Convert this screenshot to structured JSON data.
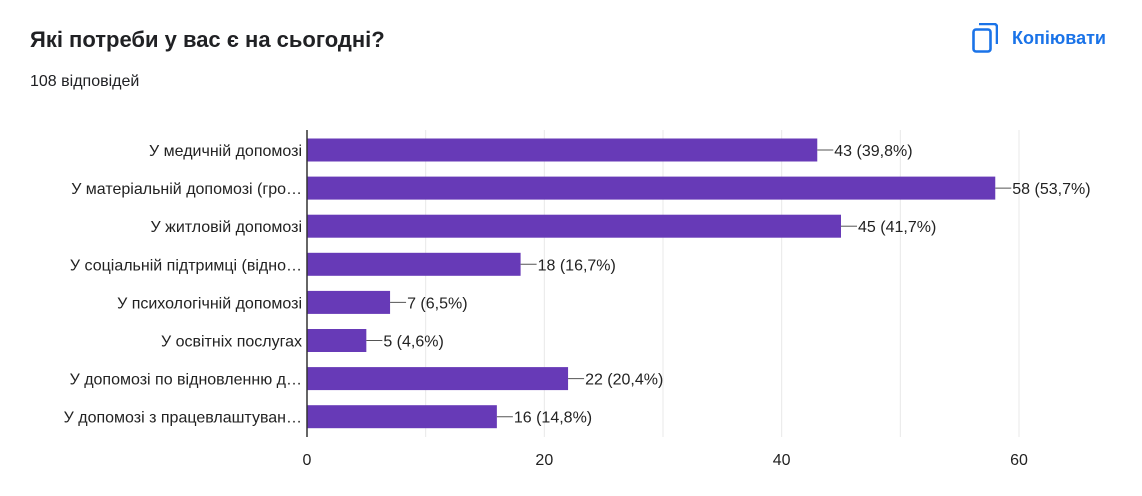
{
  "header": {
    "title": "Які потреби у вас є на сьогодні?",
    "responses": "108 відповідей",
    "copy_label": "Копіювати",
    "copy_icon": "copy-icon"
  },
  "colors": {
    "bar": "#673ab7",
    "accent": "#1a73e8",
    "grid": "#e8e8e8",
    "axis": "#333333",
    "text": "#222222"
  },
  "chart_data": {
    "type": "bar",
    "orientation": "horizontal",
    "categories": [
      "У медичній допомозі",
      "У матеріальній допомозі (гро…",
      "У житловій допомозі",
      "У соціальній підтримці (відно…",
      "У психологічній допомозі",
      "У освітніх послугах",
      "У допомозі по відновленню д…",
      "У допомозі з працевлаштуван…"
    ],
    "values": [
      43,
      58,
      45,
      18,
      7,
      5,
      22,
      16
    ],
    "data_labels": [
      "43 (39,8%)",
      "58 (53,7%)",
      "45 (41,7%)",
      "18 (16,7%)",
      "7 (6,5%)",
      "5 (4,6%)",
      "22 (20,4%)",
      "16 (14,8%)"
    ],
    "xlim": [
      0,
      60
    ],
    "xticks": [
      0,
      20,
      40,
      60
    ],
    "xtick_labels": [
      "0",
      "20",
      "40",
      "60"
    ],
    "grid": true,
    "legend": "none"
  }
}
